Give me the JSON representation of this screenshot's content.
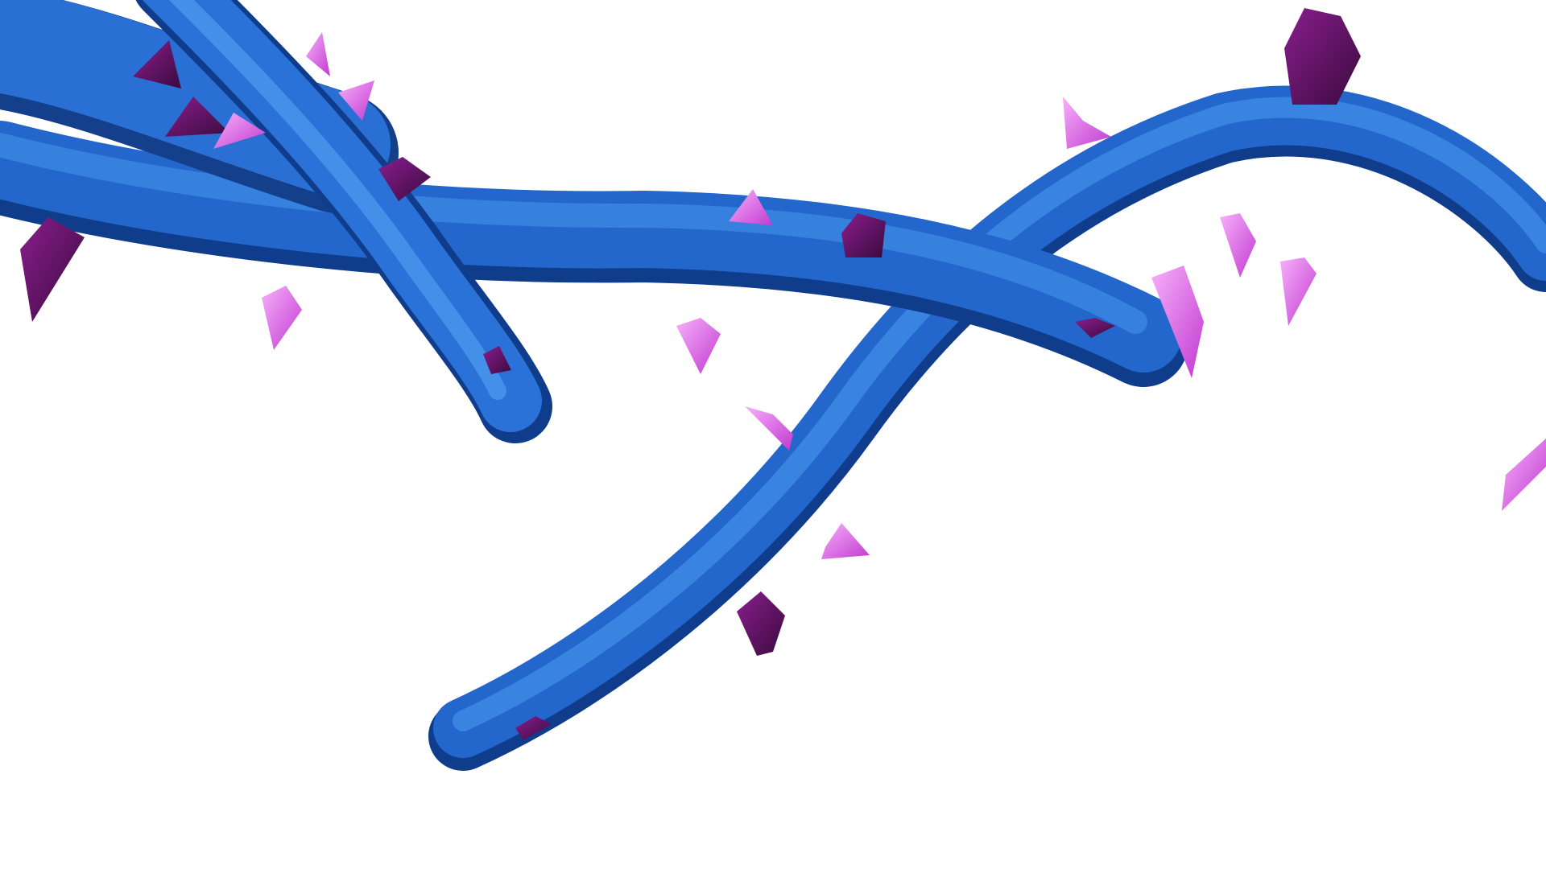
{
  "scene": {
    "subject": "thorny-branches-3d-render",
    "colors": {
      "background": "#ffffff",
      "branch_light": "#4a9cf0",
      "branch_mid": "#2467cc",
      "branch_dark": "#0f3d8c",
      "thorn_light": "#f28df7",
      "thorn_mid": "#c13ad0",
      "thorn_dark": "#4a0c4c"
    },
    "branches": [
      "upper-left-branch",
      "diagonal-branch",
      "horizontal-branch",
      "curved-branch"
    ]
  }
}
